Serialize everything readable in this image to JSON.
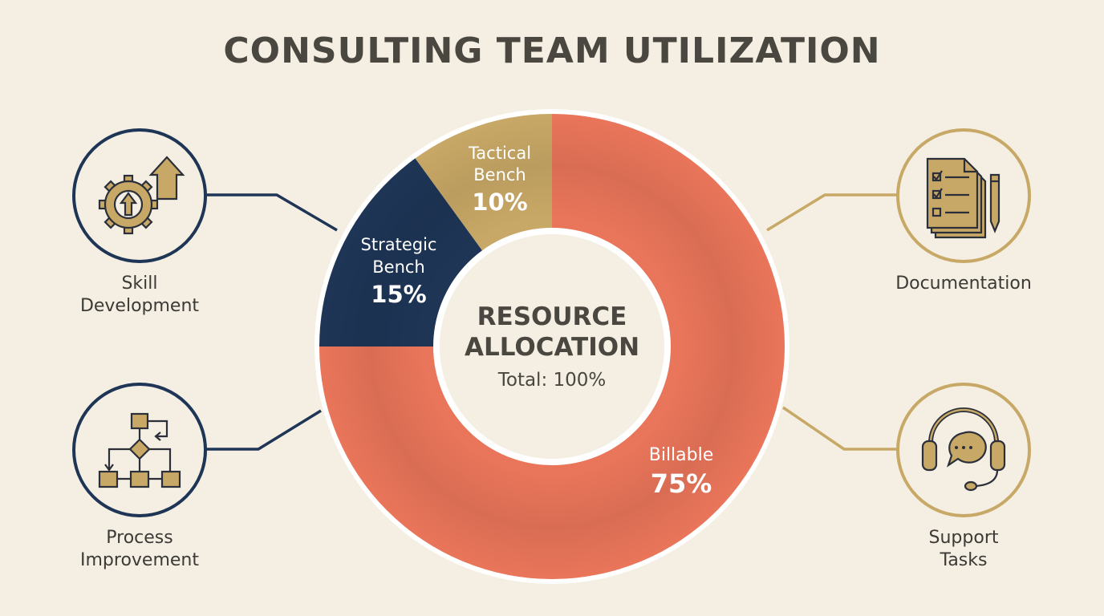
{
  "title": "CONSULTING TEAM UTILIZATION",
  "colors": {
    "background": "#f4efe2",
    "billable": "#e9755a",
    "strategic": "#1e3556",
    "tactical": "#c8a866",
    "navy_accent": "#1e3556",
    "gold_accent": "#c8a866"
  },
  "center": {
    "line1": "RESOURCE",
    "line2": "ALLOCATION",
    "total": "Total: 100%"
  },
  "chart_data": {
    "type": "pie",
    "title": "RESOURCE ALLOCATION",
    "categories": [
      "Billable",
      "Strategic Bench",
      "Tactical Bench"
    ],
    "values": [
      75,
      15,
      10
    ],
    "value_labels": [
      "75%",
      "15%",
      "10%"
    ],
    "total_label": "Total: 100%",
    "colors": [
      "#e9755a",
      "#1e3556",
      "#c8a866"
    ]
  },
  "slice_labels": {
    "billable": {
      "name": "Billable",
      "value": "75%"
    },
    "strategic": {
      "name_line1": "Strategic",
      "name_line2": "Bench",
      "value": "15%"
    },
    "tactical": {
      "name_line1": "Tactical",
      "name_line2": "Bench",
      "value": "10%"
    }
  },
  "activities": {
    "skill_development": {
      "label": "Skill\nDevelopment",
      "icon": "gear-arrow-up-icon"
    },
    "process_improvement": {
      "label": "Process\nImprovement",
      "icon": "flowchart-icon"
    },
    "documentation": {
      "label": "Documentation",
      "icon": "checklist-document-icon"
    },
    "support_tasks": {
      "label": "Support\nTasks",
      "icon": "headset-chat-icon"
    }
  }
}
